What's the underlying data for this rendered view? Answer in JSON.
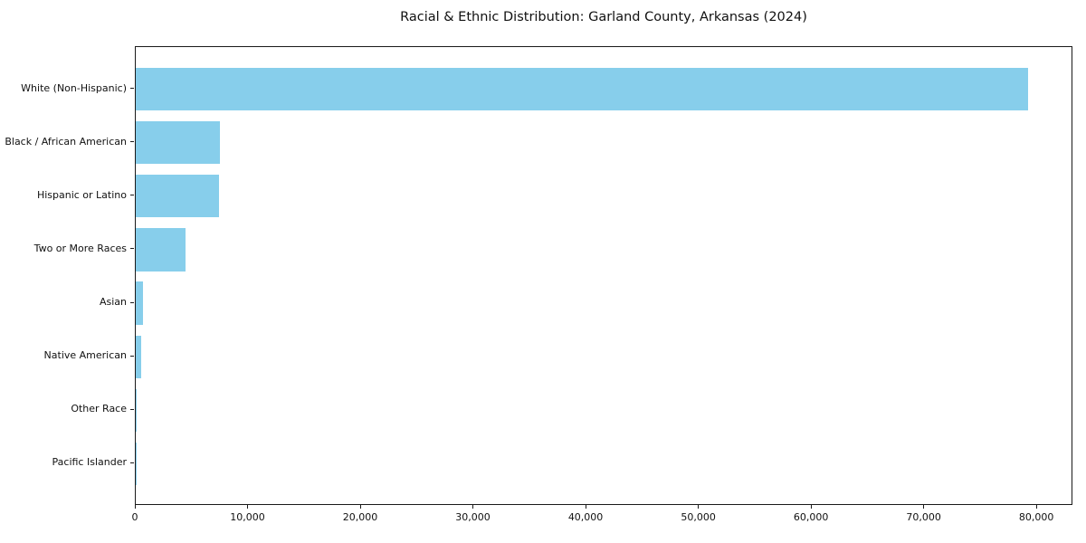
{
  "page": {
    "background_color": "#ffffff"
  },
  "chart_data": {
    "type": "bar",
    "orientation": "horizontal",
    "title": "Racial & Ethnic Distribution: Garland County, Arkansas (2024)",
    "xlabel": "",
    "ylabel": "",
    "categories": [
      "White (Non-Hispanic)",
      "Black / African American",
      "Hispanic or Latino",
      "Two or More Races",
      "Asian",
      "Native American",
      "Other Race",
      "Pacific Islander"
    ],
    "values": [
      79300,
      7500,
      7400,
      4450,
      670,
      460,
      100,
      60
    ],
    "xlim": [
      0,
      83200
    ],
    "xticks": [
      0,
      10000,
      20000,
      30000,
      40000,
      50000,
      60000,
      70000,
      80000
    ],
    "xtick_labels": [
      "0",
      "10,000",
      "20,000",
      "30,000",
      "40,000",
      "50,000",
      "60,000",
      "70,000",
      "80,000"
    ],
    "bar_color": "#87CEEB",
    "spine_color": "#1a1a1a",
    "text_color": "#111111",
    "grid": false,
    "legend": null
  }
}
